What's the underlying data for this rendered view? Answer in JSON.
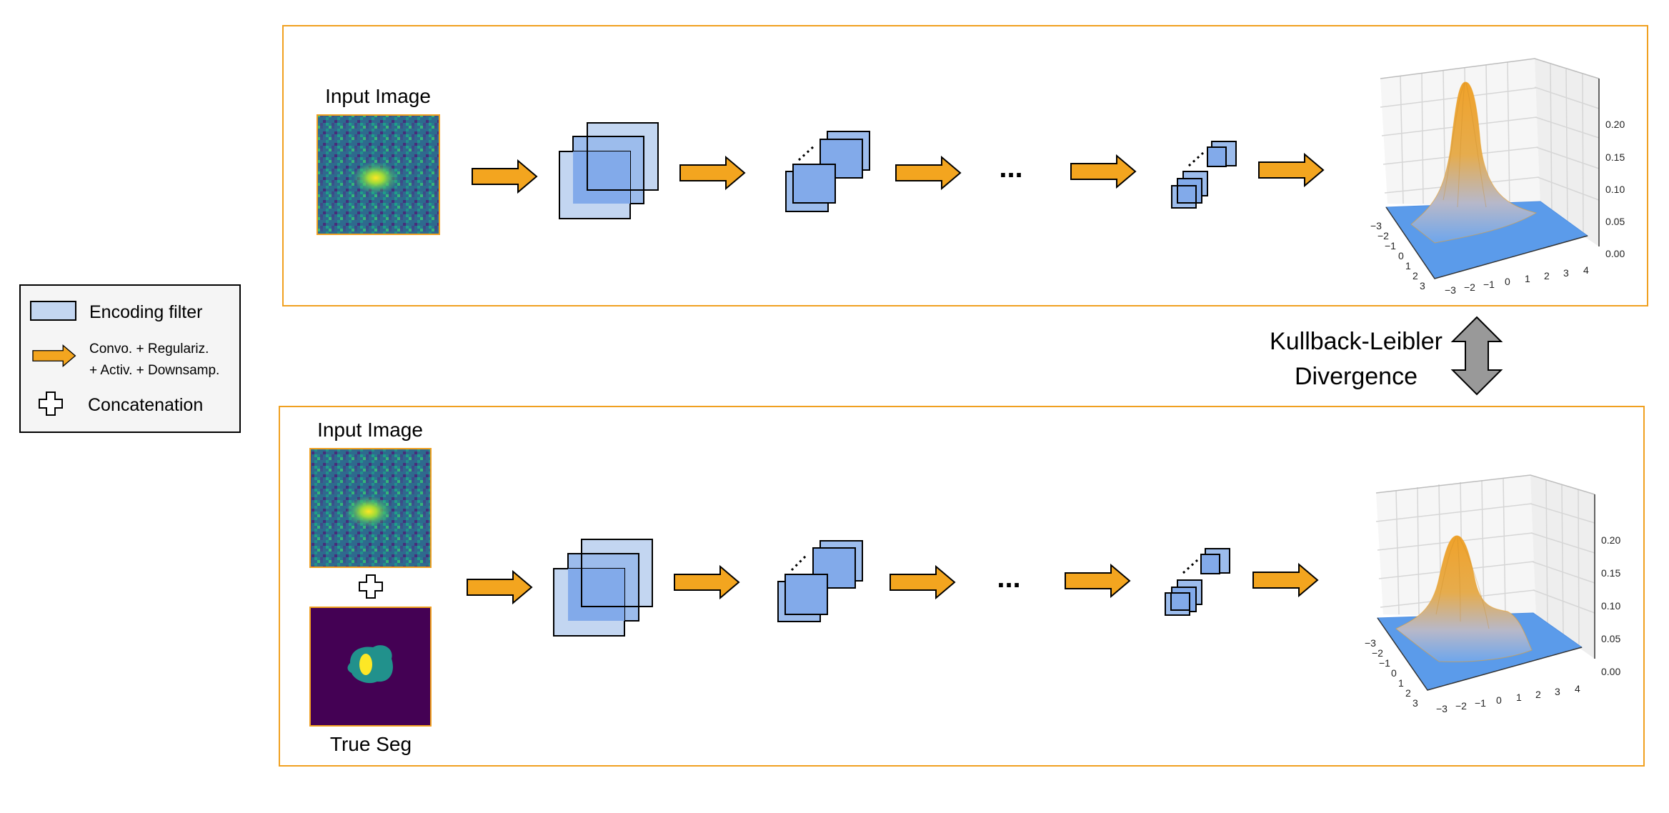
{
  "legend": {
    "encoding_filter": "Encoding filter",
    "arrow_line1": "Convo. + Regulariz.",
    "arrow_line2": "+ Activ. + Downsamp.",
    "concatenation": "Concatenation"
  },
  "top_panel": {
    "input_label": "Input Image",
    "ellipsis": "...",
    "plot": {
      "z_ticks": [
        "0.20",
        "0.15",
        "0.10",
        "0.05",
        "0.00"
      ],
      "x_ticks": [
        "−3",
        "−2",
        "−1",
        "0",
        "1",
        "2",
        "3",
        "4"
      ],
      "y_ticks": [
        "−3",
        "−2",
        "−1",
        "0",
        "1",
        "2",
        "3"
      ]
    }
  },
  "bottom_panel": {
    "input_label": "Input Image",
    "seg_label": "True Seg",
    "ellipsis": "...",
    "plot": {
      "z_ticks": [
        "0.20",
        "0.15",
        "0.10",
        "0.05",
        "0.00"
      ],
      "x_ticks": [
        "−3",
        "−2",
        "−1",
        "0",
        "1",
        "2",
        "3",
        "4"
      ],
      "y_ticks": [
        "−3",
        "−2",
        "−1",
        "0",
        "1",
        "2",
        "3"
      ]
    }
  },
  "kl": {
    "line1": "Kullback-Leibler",
    "line2": "Divergence"
  },
  "colors": {
    "frame": "#f0a020",
    "arrow_fill": "#f3a51f",
    "filter_light": "#c3d6f1",
    "filter_mid": "#9cbcec",
    "filter_dark": "#82aaea",
    "legend_bg": "#f5f5f5",
    "kl_arrow": "#999999",
    "seg_background": "#440154",
    "seg_region": "#21918c",
    "seg_core": "#fde725",
    "surface_peak": "#f0a22a",
    "surface_base": "#5b9bea"
  }
}
